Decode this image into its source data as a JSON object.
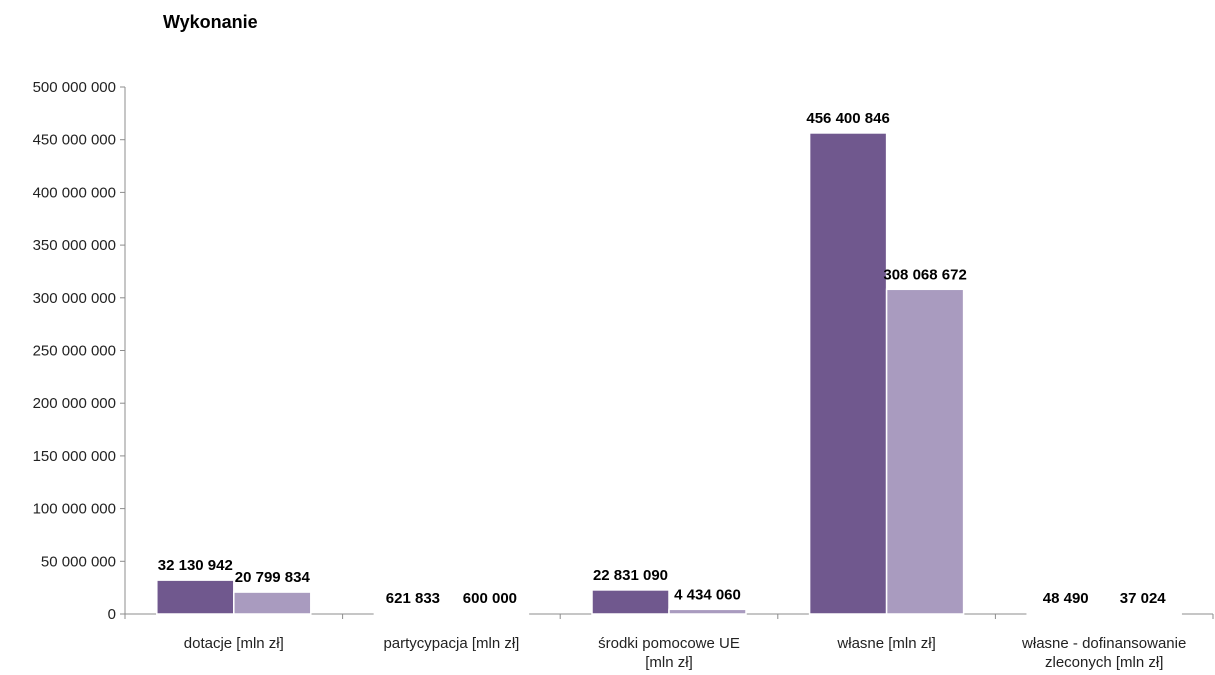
{
  "chart_data": {
    "type": "bar",
    "title": "Wykonanie",
    "xlabel": "",
    "ylabel": "",
    "ylim": [
      0,
      500000000
    ],
    "yticks": [
      0,
      50000000,
      100000000,
      150000000,
      200000000,
      250000000,
      300000000,
      350000000,
      400000000,
      450000000,
      500000000
    ],
    "ytick_labels": [
      "0",
      "50 000 000",
      "100 000 000",
      "150 000 000",
      "200 000 000",
      "250 000 000",
      "300 000 000",
      "350 000 000",
      "400 000 000",
      "450 000 000",
      "500 000 000"
    ],
    "grid": false,
    "legend": "none",
    "categories": [
      [
        "dotacje [mln zł]"
      ],
      [
        "partycypacja [mln zł]"
      ],
      [
        "środki pomocowe UE",
        "[mln zł]"
      ],
      [
        "własne [mln zł]"
      ],
      [
        "własne - dofinansowanie",
        "zleconych [mln zł]"
      ]
    ],
    "series": [
      {
        "values": [
          32130942,
          621833,
          22831090,
          456400846,
          48490
        ],
        "labels": [
          "32 130 942",
          "621 833",
          "22 831 090",
          "456 400 846",
          "48 490"
        ],
        "color": "#70588e"
      },
      {
        "values": [
          20799834,
          600000,
          4434060,
          308068672,
          37024
        ],
        "labels": [
          "20 799 834",
          "600 000",
          "4 434 060",
          "308 068 672",
          "37 024"
        ],
        "color": "#a99bbf"
      }
    ]
  }
}
